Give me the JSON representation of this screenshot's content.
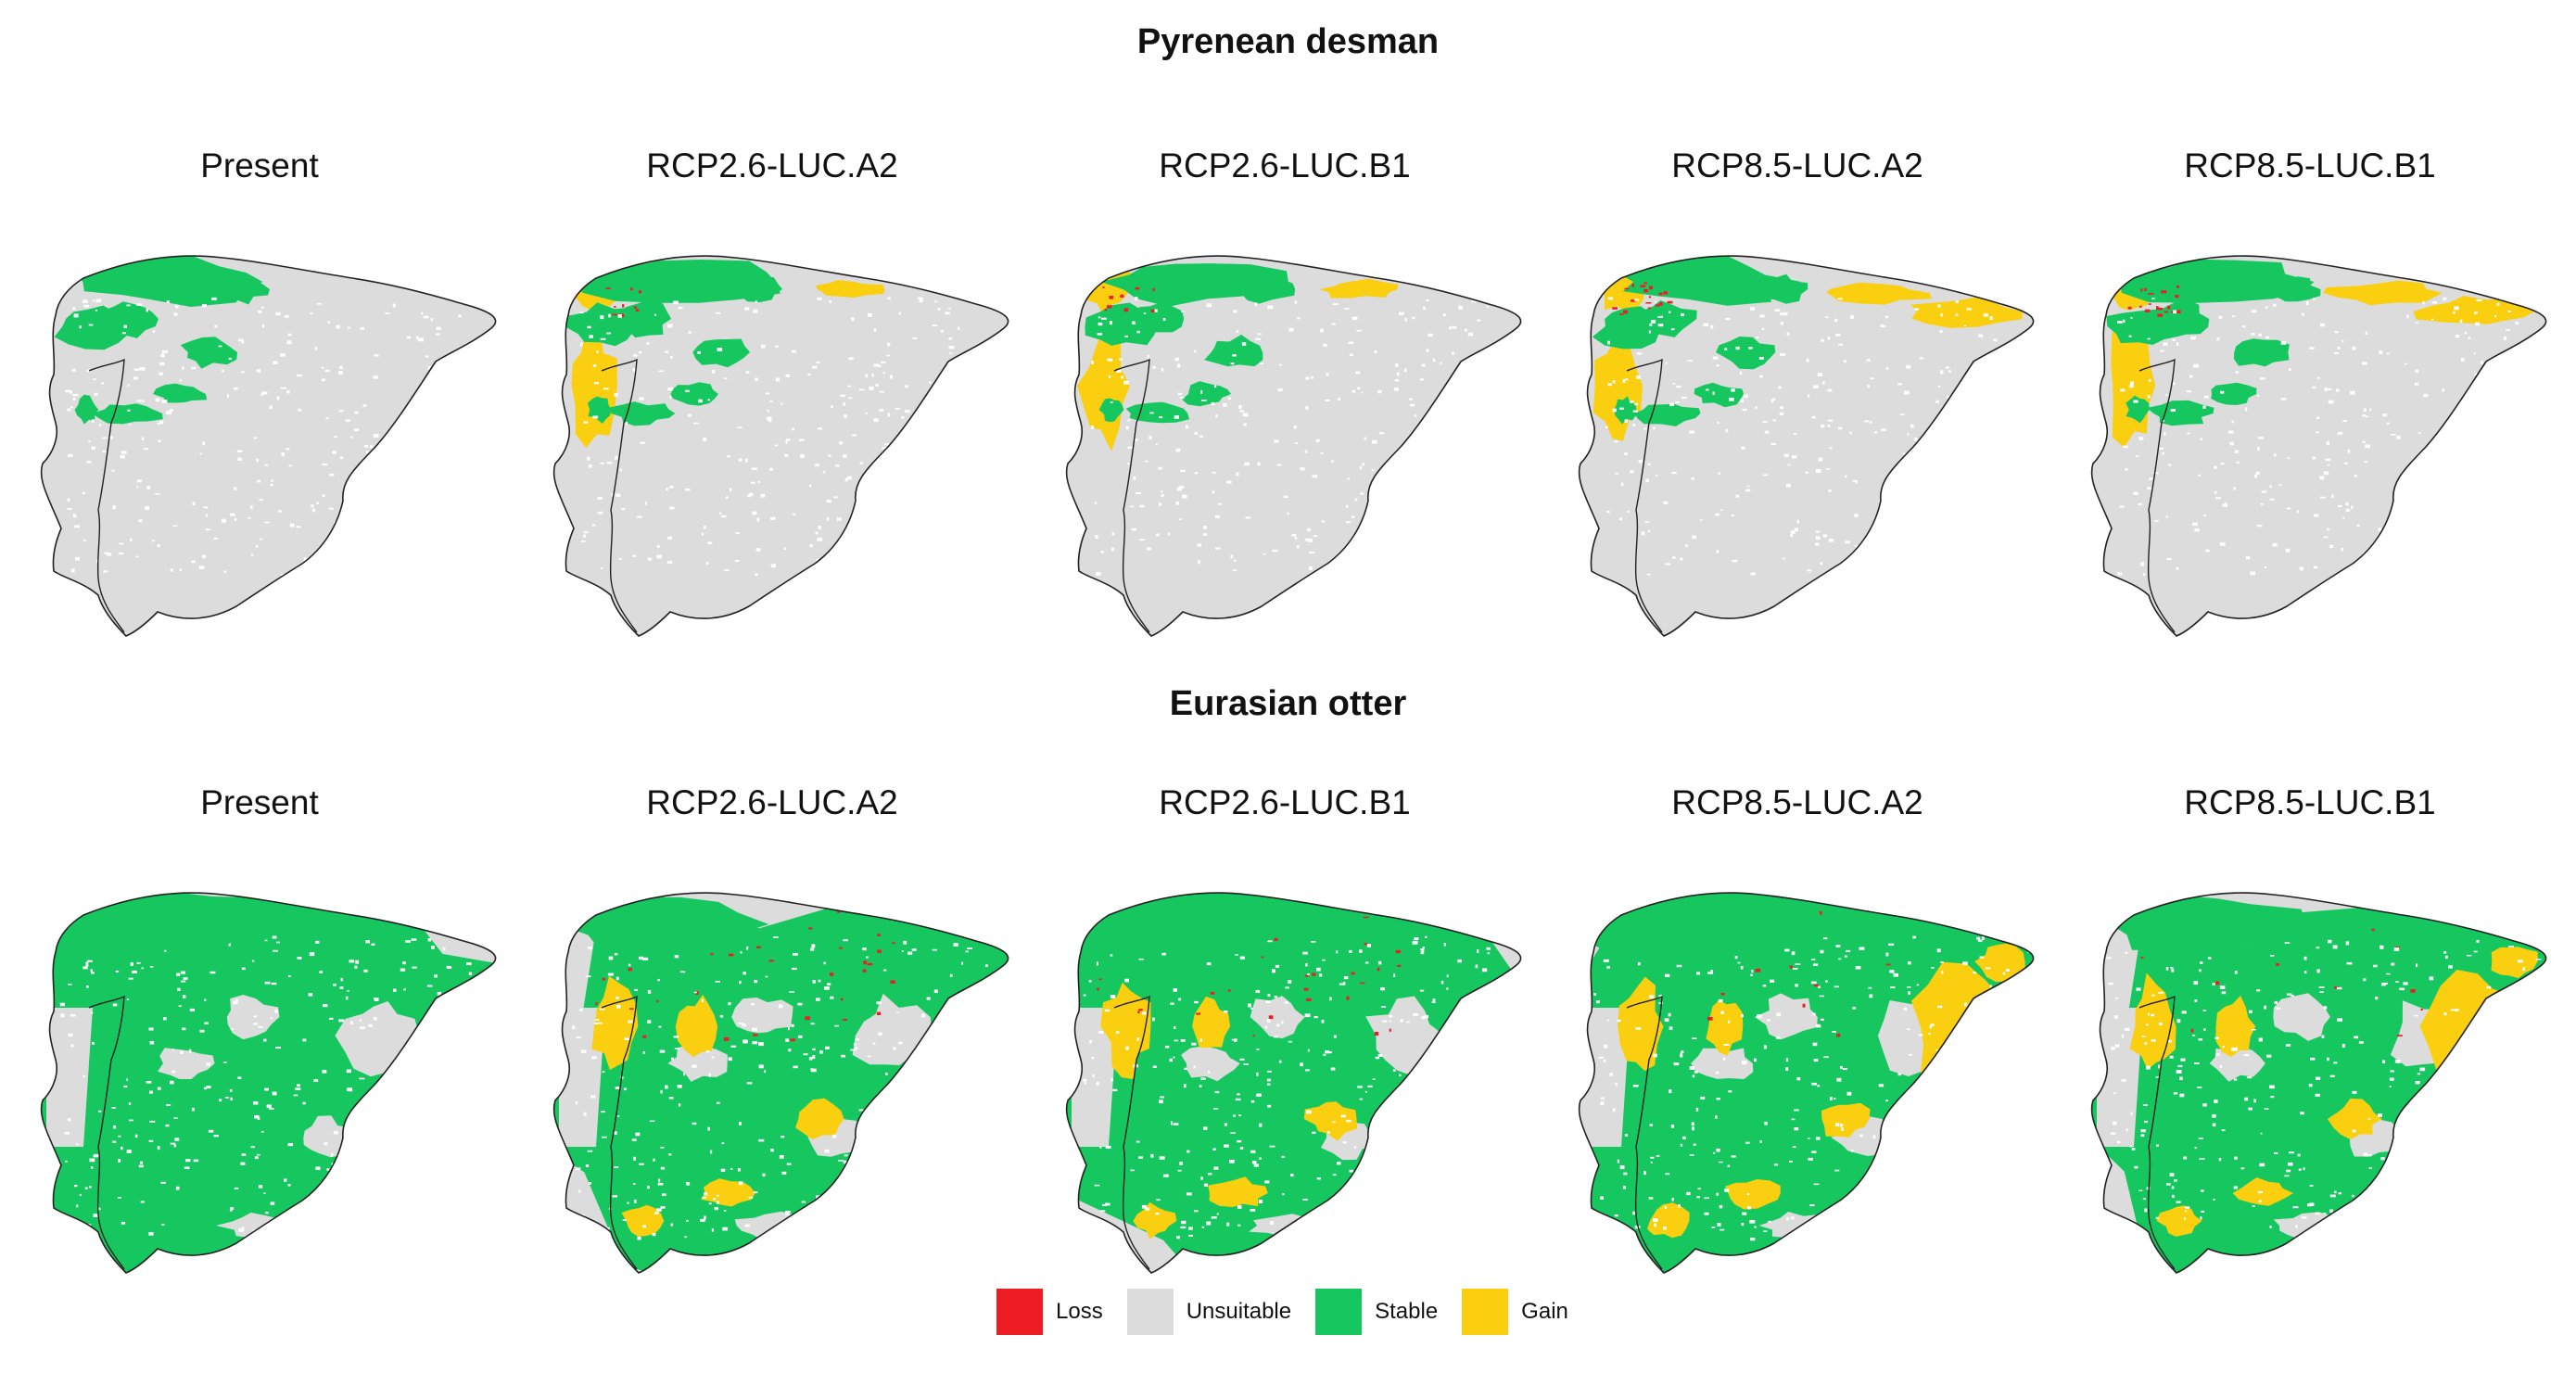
{
  "colors": {
    "loss": "#ee1d23",
    "unsuitable": "#dcdcdc",
    "stable": "#16c75f",
    "gain": "#f9cf10",
    "outline": "#222222"
  },
  "legend": [
    {
      "label": "Loss",
      "color_key": "loss"
    },
    {
      "label": "Unsuitable",
      "color_key": "unsuitable"
    },
    {
      "label": "Stable",
      "color_key": "stable"
    },
    {
      "label": "Gain",
      "color_key": "gain"
    }
  ],
  "sections": [
    {
      "title": "Pyrenean desman",
      "panels": [
        {
          "title": "Present",
          "habitat": "desman",
          "scenario": "present"
        },
        {
          "title": "RCP2.6-LUC.A2",
          "habitat": "desman",
          "scenario": "rcp26"
        },
        {
          "title": "RCP2.6-LUC.B1",
          "habitat": "desman",
          "scenario": "rcp26"
        },
        {
          "title": "RCP8.5-LUC.A2",
          "habitat": "desman",
          "scenario": "rcp85"
        },
        {
          "title": "RCP8.5-LUC.B1",
          "habitat": "desman",
          "scenario": "rcp85"
        }
      ]
    },
    {
      "title": "Eurasian otter",
      "panels": [
        {
          "title": "Present",
          "habitat": "otter",
          "scenario": "present"
        },
        {
          "title": "RCP2.6-LUC.A2",
          "habitat": "otter",
          "scenario": "rcp26"
        },
        {
          "title": "RCP2.6-LUC.B1",
          "habitat": "otter",
          "scenario": "rcp26"
        },
        {
          "title": "RCP8.5-LUC.A2",
          "habitat": "otter",
          "scenario": "rcp85"
        },
        {
          "title": "RCP8.5-LUC.B1",
          "habitat": "otter",
          "scenario": "rcp85"
        }
      ]
    }
  ]
}
